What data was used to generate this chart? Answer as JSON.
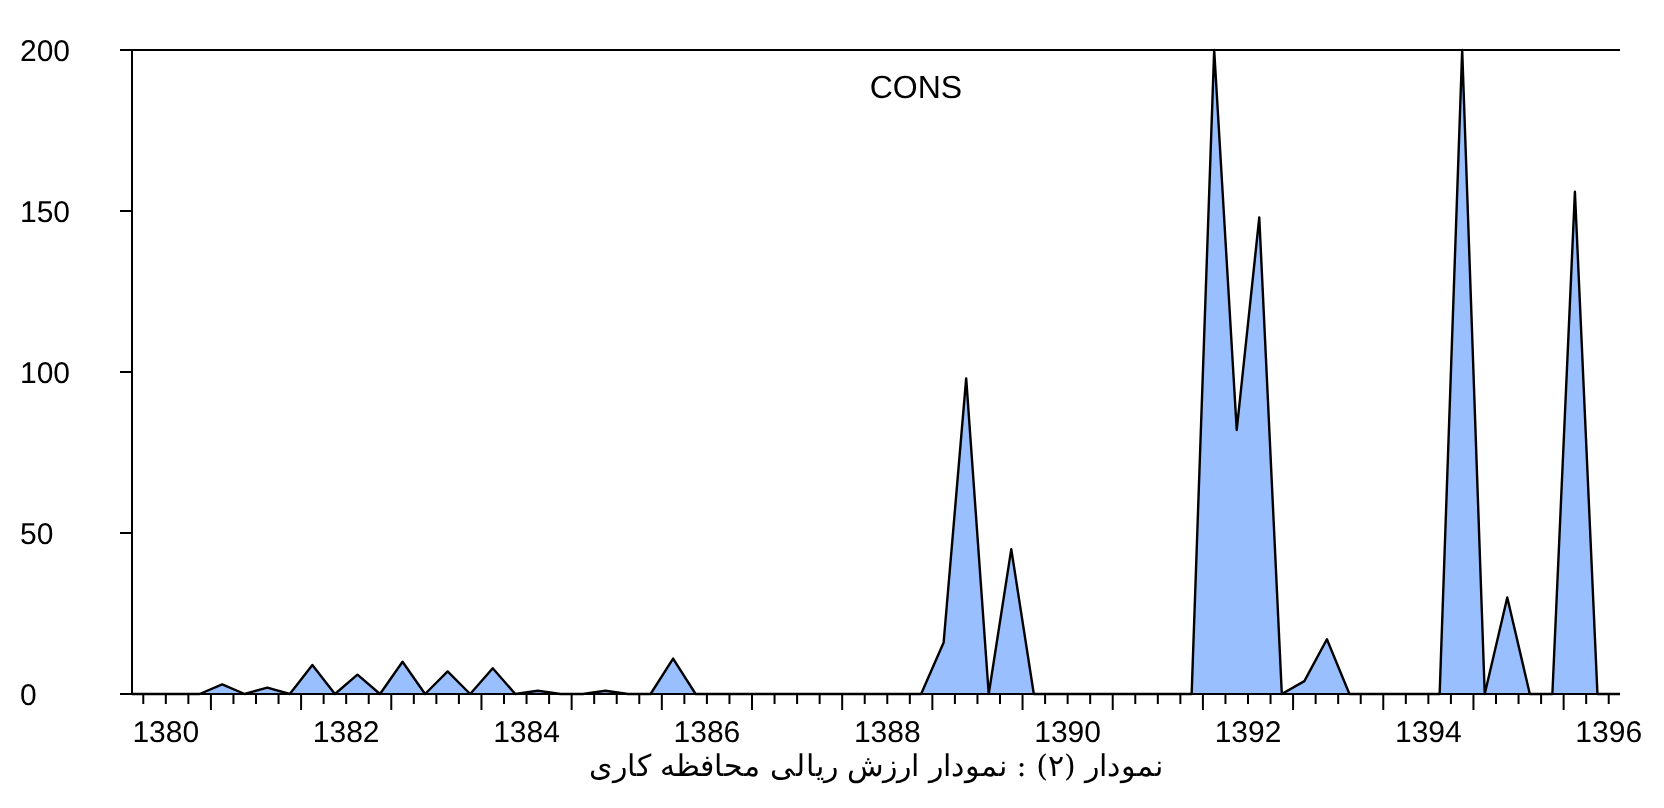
{
  "chart_data": {
    "type": "area",
    "title": "CONS",
    "x": [
      1380.125,
      1380.375,
      1380.625,
      1380.875,
      1381.125,
      1381.375,
      1381.625,
      1381.875,
      1382.125,
      1382.375,
      1382.625,
      1382.875,
      1383.125,
      1383.375,
      1383.625,
      1383.875,
      1384.125,
      1384.375,
      1384.625,
      1384.875,
      1385.125,
      1385.375,
      1385.625,
      1385.875,
      1386.125,
      1386.375,
      1386.625,
      1386.875,
      1387.125,
      1387.375,
      1387.625,
      1387.875,
      1388.125,
      1388.375,
      1388.625,
      1388.875,
      1389.125,
      1389.375,
      1389.625,
      1389.875,
      1390.125,
      1390.375,
      1390.625,
      1390.875,
      1391.125,
      1391.375,
      1391.625,
      1391.875,
      1392.125,
      1392.375,
      1392.625,
      1392.875,
      1393.125,
      1393.375,
      1393.625,
      1393.875,
      1394.125,
      1394.375,
      1394.625,
      1394.875,
      1395.125,
      1395.375,
      1395.625,
      1395.875,
      1396.125,
      1396.375,
      1396.625
    ],
    "series": [
      {
        "color": "#99bfff",
        "values": [
          0,
          0,
          0,
          0,
          3,
          0,
          2,
          0,
          9,
          0,
          6,
          0,
          10,
          0,
          7,
          0,
          8,
          0,
          1,
          0,
          0,
          1,
          0,
          0,
          11,
          0,
          0,
          0,
          0,
          0,
          0,
          0,
          0,
          0,
          0,
          0,
          16,
          98,
          0,
          45,
          0,
          0,
          0,
          0,
          0,
          0,
          0,
          0,
          200,
          82,
          148,
          0,
          4,
          17,
          0,
          0,
          0,
          0,
          0,
          200,
          0,
          30,
          0,
          0,
          156,
          0,
          0
        ]
      }
    ],
    "xlim": [
      1380.125,
      1396.625
    ],
    "xticks": [
      {
        "value": 1380.25,
        "label": null
      },
      {
        "value": 1380.5,
        "label": "1380"
      },
      {
        "value": 1380.75,
        "label": null
      },
      {
        "value": 1381,
        "label": null
      },
      {
        "value": 1381.25,
        "label": null
      },
      {
        "value": 1381.5,
        "label": null
      },
      {
        "value": 1381.75,
        "label": null
      },
      {
        "value": 1382,
        "label": null
      },
      {
        "value": 1382.25,
        "label": null
      },
      {
        "value": 1382.5,
        "label": "1382"
      },
      {
        "value": 1382.75,
        "label": null
      },
      {
        "value": 1383,
        "label": null
      },
      {
        "value": 1383.25,
        "label": null
      },
      {
        "value": 1383.5,
        "label": null
      },
      {
        "value": 1383.75,
        "label": null
      },
      {
        "value": 1384,
        "label": null
      },
      {
        "value": 1384.25,
        "label": null
      },
      {
        "value": 1384.5,
        "label": "1384"
      },
      {
        "value": 1384.75,
        "label": null
      },
      {
        "value": 1385,
        "label": null
      },
      {
        "value": 1385.25,
        "label": null
      },
      {
        "value": 1385.5,
        "label": null
      },
      {
        "value": 1385.75,
        "label": null
      },
      {
        "value": 1386,
        "label": null
      },
      {
        "value": 1386.25,
        "label": null
      },
      {
        "value": 1386.5,
        "label": "1386"
      },
      {
        "value": 1386.75,
        "label": null
      },
      {
        "value": 1387,
        "label": null
      },
      {
        "value": 1387.25,
        "label": null
      },
      {
        "value": 1387.5,
        "label": null
      },
      {
        "value": 1387.75,
        "label": null
      },
      {
        "value": 1388,
        "label": null
      },
      {
        "value": 1388.25,
        "label": null
      },
      {
        "value": 1388.5,
        "label": "1388"
      },
      {
        "value": 1388.75,
        "label": null
      },
      {
        "value": 1389,
        "label": null
      },
      {
        "value": 1389.25,
        "label": null
      },
      {
        "value": 1389.5,
        "label": null
      },
      {
        "value": 1389.75,
        "label": null
      },
      {
        "value": 1390,
        "label": null
      },
      {
        "value": 1390.25,
        "label": null
      },
      {
        "value": 1390.5,
        "label": "1390"
      },
      {
        "value": 1390.75,
        "label": null
      },
      {
        "value": 1391,
        "label": null
      },
      {
        "value": 1391.25,
        "label": null
      },
      {
        "value": 1391.5,
        "label": null
      },
      {
        "value": 1391.75,
        "label": null
      },
      {
        "value": 1392,
        "label": null
      },
      {
        "value": 1392.25,
        "label": null
      },
      {
        "value": 1392.5,
        "label": "1392"
      },
      {
        "value": 1392.75,
        "label": null
      },
      {
        "value": 1393,
        "label": null
      },
      {
        "value": 1393.25,
        "label": null
      },
      {
        "value": 1393.5,
        "label": null
      },
      {
        "value": 1393.75,
        "label": null
      },
      {
        "value": 1394,
        "label": null
      },
      {
        "value": 1394.25,
        "label": null
      },
      {
        "value": 1394.5,
        "label": "1394"
      },
      {
        "value": 1394.75,
        "label": null
      },
      {
        "value": 1395,
        "label": null
      },
      {
        "value": 1395.25,
        "label": null
      },
      {
        "value": 1395.5,
        "label": null
      },
      {
        "value": 1395.75,
        "label": null
      },
      {
        "value": 1396,
        "label": null
      },
      {
        "value": 1396.25,
        "label": null
      },
      {
        "value": 1396.5,
        "label": "1396"
      }
    ],
    "ylim": [
      0,
      200
    ],
    "yticks": [
      0,
      50,
      100,
      150,
      200
    ],
    "grid": false,
    "annotations": [
      "نمودار (۲) : نمودار ارزش ریالی محافظه کاری"
    ]
  }
}
